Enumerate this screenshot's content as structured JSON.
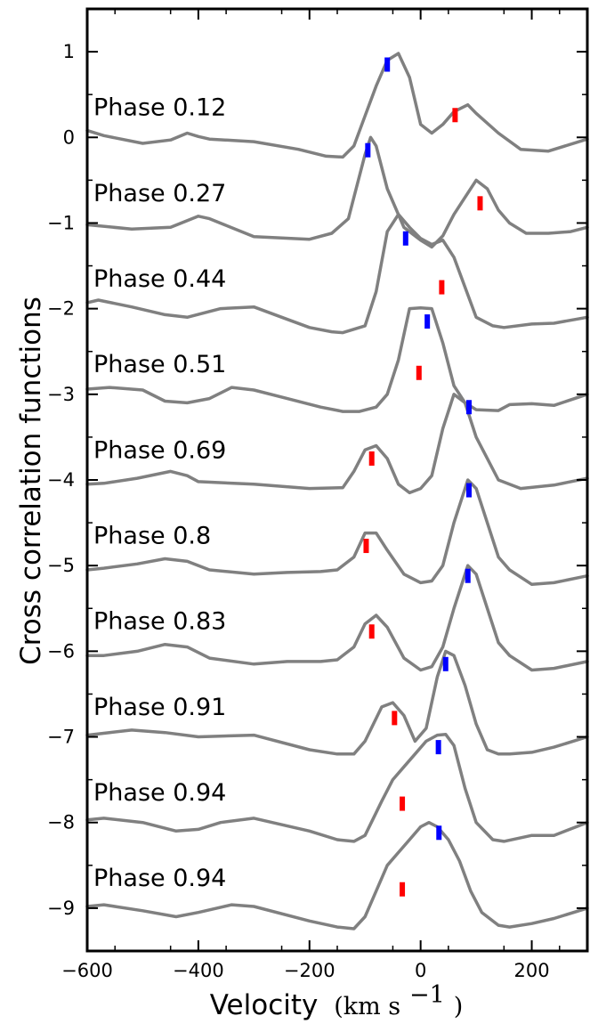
{
  "chart_data": {
    "type": "line",
    "xlabel": "Velocity",
    "xlabel_unit": "(km s",
    "xlabel_unit_exp": "−1",
    "xlabel_unit_close": ")",
    "ylabel": "Cross correlation functions",
    "xlim": [
      -600,
      300
    ],
    "ylim": [
      -9.5,
      1.5
    ],
    "xticks": [
      -600,
      -400,
      -200,
      0,
      200
    ],
    "xtick_labels": [
      "−600",
      "−400",
      "−200",
      "0",
      "200"
    ],
    "yticks": [
      1,
      0,
      -1,
      -2,
      -3,
      -4,
      -5,
      -6,
      -7,
      -8,
      -9
    ],
    "ytick_labels": [
      "1",
      "0",
      "−1",
      "−2",
      "−3",
      "−4",
      "−5",
      "−6",
      "−7",
      "−8",
      "−9"
    ],
    "grid": false,
    "line_color": "#808080",
    "primary_marker_color": "#0000ff",
    "secondary_marker_color": "#ff0000",
    "series": [
      {
        "label": "Phase 0.12",
        "label_y": 0.35,
        "x": [
          -600,
          -570,
          -500,
          -450,
          -420,
          -400,
          -380,
          -300,
          -220,
          -170,
          -140,
          -120,
          -100,
          -80,
          -60,
          -40,
          -20,
          0,
          20,
          40,
          60,
          85,
          100,
          140,
          180,
          230,
          300
        ],
        "y": [
          0.08,
          0.02,
          -0.07,
          -0.03,
          0.05,
          0.01,
          -0.02,
          -0.05,
          -0.14,
          -0.22,
          -0.23,
          -0.1,
          0.25,
          0.6,
          0.9,
          0.98,
          0.7,
          0.15,
          0.05,
          0.15,
          0.3,
          0.38,
          0.28,
          0.05,
          -0.14,
          -0.16,
          -0.02
        ],
        "markers": {
          "primary": {
            "x": -60,
            "y": 0.85
          },
          "secondary": {
            "x": 62,
            "y": 0.26
          }
        }
      },
      {
        "label": "Phase 0.27",
        "label_y": -0.65,
        "x": [
          -600,
          -520,
          -450,
          -400,
          -380,
          -300,
          -200,
          -160,
          -130,
          -120,
          -100,
          -90,
          -80,
          -60,
          -30,
          0,
          20,
          40,
          60,
          80,
          100,
          120,
          140,
          160,
          190,
          230,
          270,
          300
        ],
        "y": [
          -1.02,
          -1.07,
          -1.05,
          -0.92,
          -0.95,
          -1.16,
          -1.19,
          -1.12,
          -0.95,
          -0.7,
          -0.2,
          0.0,
          -0.1,
          -0.6,
          -1.05,
          -1.2,
          -1.28,
          -1.15,
          -0.9,
          -0.7,
          -0.5,
          -0.6,
          -0.85,
          -1.0,
          -1.12,
          -1.12,
          -1.1,
          -1.05
        ],
        "markers": {
          "primary": {
            "x": -95,
            "y": -0.15
          },
          "secondary": {
            "x": 107,
            "y": -0.77
          }
        }
      },
      {
        "label": "Phase 0.44",
        "label_y": -1.65,
        "x": [
          -600,
          -580,
          -520,
          -460,
          -420,
          -360,
          -300,
          -250,
          -200,
          -160,
          -140,
          -100,
          -80,
          -60,
          -40,
          -20,
          0,
          20,
          40,
          60,
          80,
          100,
          130,
          150,
          200,
          240,
          300
        ],
        "y": [
          -1.93,
          -1.9,
          -1.98,
          -2.07,
          -2.1,
          -2.0,
          -1.98,
          -2.1,
          -2.22,
          -2.27,
          -2.28,
          -2.2,
          -1.8,
          -1.1,
          -0.9,
          -1.05,
          -1.18,
          -1.25,
          -1.2,
          -1.4,
          -1.75,
          -2.1,
          -2.2,
          -2.22,
          -2.18,
          -2.17,
          -2.1
        ],
        "markers": {
          "primary": {
            "x": -27,
            "y": -1.18
          },
          "secondary": {
            "x": 38,
            "y": -1.75
          }
        }
      },
      {
        "label": "Phase 0.51",
        "label_y": -2.65,
        "x": [
          -600,
          -560,
          -500,
          -460,
          -420,
          -380,
          -340,
          -300,
          -240,
          -180,
          -140,
          -110,
          -80,
          -60,
          -40,
          -20,
          0,
          20,
          40,
          60,
          80,
          100,
          140,
          160,
          200,
          240,
          300
        ],
        "y": [
          -2.94,
          -2.92,
          -2.95,
          -3.08,
          -3.1,
          -3.05,
          -2.92,
          -2.95,
          -3.05,
          -3.15,
          -3.2,
          -3.2,
          -3.15,
          -3.0,
          -2.6,
          -2.0,
          -1.99,
          -2.0,
          -2.4,
          -2.9,
          -3.1,
          -3.18,
          -3.19,
          -3.12,
          -3.11,
          -3.13,
          -3.0
        ],
        "markers": {
          "primary": {
            "x": 12,
            "y": -2.15
          },
          "secondary": {
            "x": -3,
            "y": -2.75
          }
        }
      },
      {
        "label": "Phase 0.69",
        "label_y": -3.65,
        "x": [
          -600,
          -570,
          -510,
          -450,
          -420,
          -400,
          -300,
          -200,
          -140,
          -120,
          -100,
          -80,
          -60,
          -40,
          -20,
          0,
          20,
          40,
          60,
          80,
          100,
          140,
          180,
          240,
          300
        ],
        "y": [
          -4.05,
          -4.04,
          -3.98,
          -3.9,
          -3.95,
          -4.02,
          -4.05,
          -4.1,
          -4.09,
          -3.9,
          -3.65,
          -3.6,
          -3.75,
          -4.05,
          -4.15,
          -4.1,
          -3.95,
          -3.4,
          -3.0,
          -3.1,
          -3.5,
          -4.0,
          -4.1,
          -4.06,
          -3.98
        ],
        "markers": {
          "primary": {
            "x": 87,
            "y": -3.15
          },
          "secondary": {
            "x": -88,
            "y": -3.75
          }
        }
      },
      {
        "label": "Phase 0.8",
        "label_y": -4.65,
        "x": [
          -600,
          -570,
          -510,
          -460,
          -420,
          -380,
          -300,
          -240,
          -180,
          -150,
          -120,
          -100,
          -80,
          -60,
          -30,
          0,
          20,
          40,
          60,
          85,
          100,
          120,
          140,
          160,
          200,
          240,
          300
        ],
        "y": [
          -5.05,
          -5.03,
          -4.98,
          -4.92,
          -4.95,
          -5.05,
          -5.1,
          -5.08,
          -5.07,
          -5.05,
          -4.9,
          -4.62,
          -4.62,
          -4.82,
          -5.1,
          -5.2,
          -5.18,
          -5.0,
          -4.5,
          -4.0,
          -4.1,
          -4.5,
          -4.9,
          -5.05,
          -5.22,
          -5.2,
          -5.12
        ],
        "markers": {
          "primary": {
            "x": 87,
            "y": -4.12
          },
          "secondary": {
            "x": -98,
            "y": -4.77
          }
        }
      },
      {
        "label": "Phase 0.83",
        "label_y": -5.65,
        "x": [
          -600,
          -570,
          -510,
          -460,
          -420,
          -380,
          -300,
          -240,
          -180,
          -150,
          -120,
          -100,
          -80,
          -60,
          -30,
          0,
          20,
          40,
          60,
          85,
          100,
          120,
          140,
          160,
          200,
          240,
          300
        ],
        "y": [
          -6.05,
          -6.05,
          -6.0,
          -5.92,
          -5.95,
          -6.08,
          -6.15,
          -6.12,
          -6.12,
          -6.1,
          -5.95,
          -5.68,
          -5.58,
          -5.72,
          -6.08,
          -6.22,
          -6.18,
          -5.95,
          -5.5,
          -5.0,
          -5.1,
          -5.5,
          -5.9,
          -6.05,
          -6.22,
          -6.2,
          -6.12
        ],
        "markers": {
          "primary": {
            "x": 85,
            "y": -5.12
          },
          "secondary": {
            "x": -88,
            "y": -5.77
          }
        }
      },
      {
        "label": "Phase 0.91",
        "label_y": -6.65,
        "x": [
          -600,
          -560,
          -520,
          -460,
          -400,
          -300,
          -200,
          -150,
          -120,
          -100,
          -70,
          -50,
          -30,
          -10,
          10,
          30,
          45,
          60,
          80,
          100,
          120,
          140,
          160,
          200,
          240,
          300
        ],
        "y": [
          -6.98,
          -6.95,
          -6.92,
          -6.95,
          -7.0,
          -6.98,
          -7.15,
          -7.2,
          -7.2,
          -7.05,
          -6.65,
          -6.6,
          -6.75,
          -7.05,
          -6.9,
          -6.3,
          -6.0,
          -6.05,
          -6.4,
          -6.85,
          -7.15,
          -7.2,
          -7.2,
          -7.18,
          -7.12,
          -7.0
        ],
        "markers": {
          "primary": {
            "x": 45,
            "y": -6.15
          },
          "secondary": {
            "x": -47,
            "y": -6.78
          }
        }
      },
      {
        "label": "Phase 0.94",
        "label_y": -7.65,
        "x": [
          -600,
          -570,
          -500,
          -440,
          -400,
          -360,
          -300,
          -200,
          -150,
          -120,
          -100,
          -70,
          -50,
          -30,
          -10,
          10,
          30,
          45,
          60,
          80,
          100,
          130,
          150,
          200,
          240,
          300
        ],
        "y": [
          -7.97,
          -7.95,
          -8.0,
          -8.1,
          -8.08,
          -8.0,
          -7.95,
          -8.1,
          -8.2,
          -8.22,
          -8.15,
          -7.75,
          -7.5,
          -7.35,
          -7.2,
          -7.05,
          -6.98,
          -6.97,
          -7.1,
          -7.6,
          -8.0,
          -8.2,
          -8.22,
          -8.15,
          -8.15,
          -8.0
        ],
        "markers": {
          "primary": {
            "x": 32,
            "y": -7.12
          },
          "secondary": {
            "x": -33,
            "y": -7.78
          }
        }
      },
      {
        "label": "Phase 0.94",
        "label_y": -8.65,
        "x": [
          -600,
          -570,
          -500,
          -440,
          -400,
          -340,
          -300,
          -200,
          -150,
          -120,
          -100,
          -80,
          -60,
          -40,
          -20,
          0,
          15,
          30,
          50,
          70,
          90,
          110,
          140,
          160,
          200,
          240,
          300
        ],
        "y": [
          -8.98,
          -8.96,
          -9.03,
          -9.1,
          -9.05,
          -8.96,
          -8.98,
          -9.15,
          -9.22,
          -9.24,
          -9.1,
          -8.8,
          -8.5,
          -8.35,
          -8.2,
          -8.05,
          -8.0,
          -8.05,
          -8.2,
          -8.45,
          -8.8,
          -9.05,
          -9.2,
          -9.22,
          -9.18,
          -9.12,
          -9.0
        ],
        "markers": {
          "primary": {
            "x": 33,
            "y": -8.12
          },
          "secondary": {
            "x": -33,
            "y": -8.78
          }
        }
      }
    ]
  }
}
